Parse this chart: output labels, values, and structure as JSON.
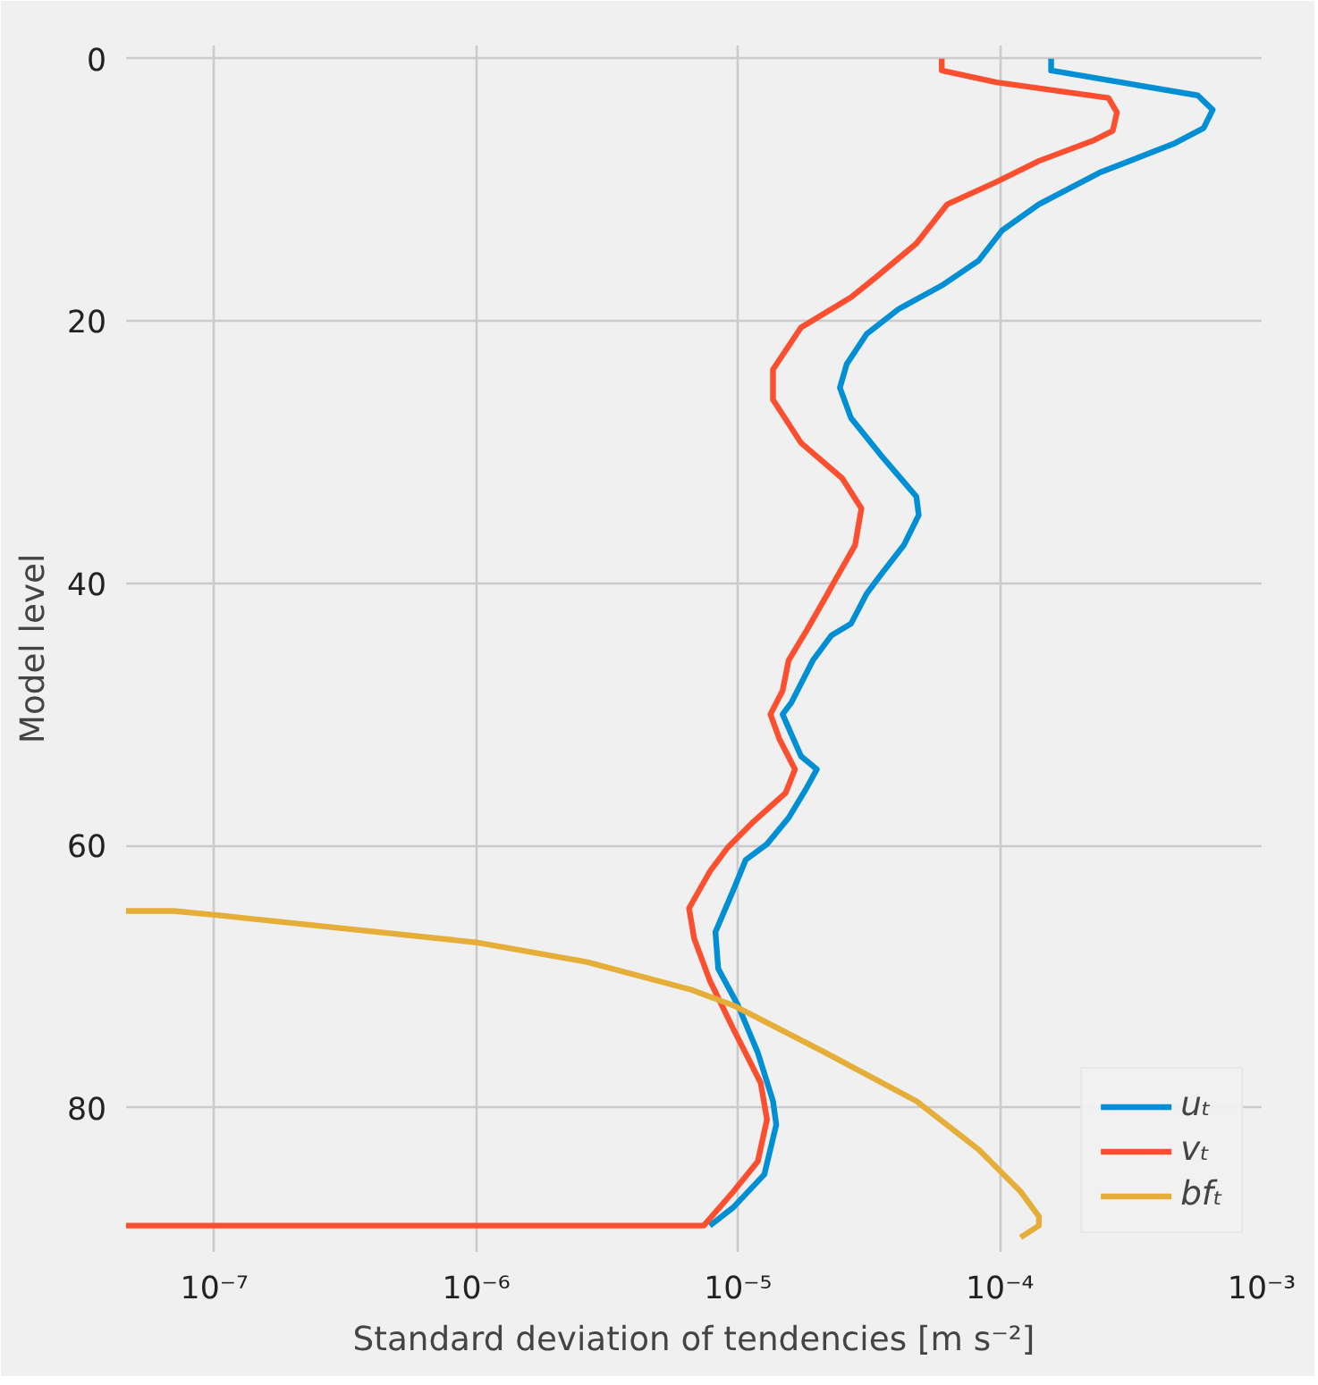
{
  "chart_data": {
    "type": "line",
    "xlabel": "Standard deviation of tendencies [m s⁻²]",
    "ylabel": "Model level",
    "log": "x",
    "grid": true,
    "legend": "bottom right",
    "line_style": "solid",
    "marker": "none",
    "xlim": [
      4.6e-08,
      0.001
    ],
    "xticks": [
      {
        "value": 1e-07,
        "label": "10⁻⁷"
      },
      {
        "value": 1e-06,
        "label": "10⁻⁶"
      },
      {
        "value": 1e-05,
        "label": "10⁻⁵"
      },
      {
        "value": 0.0001,
        "label": "10⁻⁴"
      },
      {
        "value": 0.001,
        "label": "10⁻³"
      }
    ],
    "ylim": [
      91,
      -1
    ],
    "yticks": [
      0,
      20,
      40,
      60,
      80
    ],
    "series": [
      {
        "name": "uₜ",
        "color": "#008fd5",
        "x": [
          0.000157,
          0.000157,
          0.00057,
          0.00065,
          0.0006,
          0.00046,
          0.00024,
          0.000141,
          0.000102,
          8.3e-05,
          6e-05,
          4.1e-05,
          3.1e-05,
          2.6e-05,
          2.45e-05,
          2.7e-05,
          3.5e-05,
          4.8e-05,
          4.9e-05,
          4.3e-05,
          3.5e-05,
          3.1e-05,
          2.7e-05,
          2.27e-05,
          1.93e-05,
          1.6e-05,
          1.48e-05,
          1.74e-05,
          2e-05,
          1.83e-05,
          1.56e-05,
          1.29e-05,
          1.07e-05,
          9.6e-06,
          8.2e-06,
          8.4e-06,
          1e-05,
          1.19e-05,
          1.36e-05,
          1.4e-05,
          1.26e-05,
          9.6e-06,
          7.8e-06
        ],
        "values": [
          0,
          0.9,
          2.8,
          3.9,
          5.3,
          6.5,
          8.7,
          11.1,
          13.1,
          15.4,
          17.3,
          19.1,
          21.0,
          23.3,
          25.1,
          27.4,
          30.2,
          33.4,
          34.8,
          37.1,
          39.4,
          40.8,
          43.1,
          44.0,
          45.9,
          49.1,
          50.0,
          53.2,
          54.2,
          55.6,
          57.9,
          59.9,
          61.1,
          63.4,
          66.6,
          69.4,
          72.2,
          75.8,
          79.5,
          81.3,
          85.1,
          87.6,
          89
        ]
      },
      {
        "name": "vₜ",
        "color": "#fc4f30",
        "x": [
          6e-05,
          6e-05,
          9.7e-05,
          0.00026,
          0.00028,
          0.00027,
          0.00023,
          0.000141,
          9.7e-05,
          6.3e-05,
          4.8e-05,
          3.3e-05,
          2.7e-05,
          1.74e-05,
          1.36e-05,
          1.36e-05,
          1.74e-05,
          2.5e-05,
          2.96e-05,
          2.8e-05,
          2.27e-05,
          2.2e-05,
          1.83e-05,
          1.56e-05,
          1.48e-05,
          1.33e-05,
          1.44e-05,
          1.65e-05,
          1.52e-05,
          1.13e-05,
          9.1e-06,
          7.8e-06,
          6.5e-06,
          6.8e-06,
          7.8e-06,
          9.6e-06,
          1.22e-05,
          1.29e-05,
          1.19e-05,
          9.6e-06,
          7.4e-06,
          4.6e-08
        ],
        "values": [
          0,
          0.9,
          1.8,
          3.0,
          4.1,
          5.5,
          6.2,
          7.8,
          9.4,
          11.1,
          14.1,
          16.8,
          18.2,
          20.5,
          23.7,
          26.0,
          29.3,
          32.0,
          34.3,
          37.1,
          40.3,
          40.8,
          43.6,
          45.9,
          48.2,
          50.0,
          51.9,
          54.2,
          56.0,
          58.3,
          60.2,
          62.0,
          64.8,
          67.1,
          70.3,
          74.0,
          78.1,
          80.9,
          84.1,
          86.4,
          89,
          89
        ]
      },
      {
        "name": "bfₜ",
        "color": "#e5ae38",
        "x": [
          4.6e-08,
          7e-08,
          1e-07,
          1e-06,
          2.65e-06,
          6.6e-06,
          9.6e-06,
          2.15e-05,
          4.8e-05,
          8.3e-05,
          0.00012,
          0.000141,
          0.000141,
          0.00012
        ],
        "values": [
          65.0,
          65.0,
          65.3,
          67.4,
          68.9,
          71.0,
          72.2,
          75.8,
          79.5,
          83.2,
          86.4,
          88.3,
          89,
          89.9
        ]
      }
    ]
  }
}
